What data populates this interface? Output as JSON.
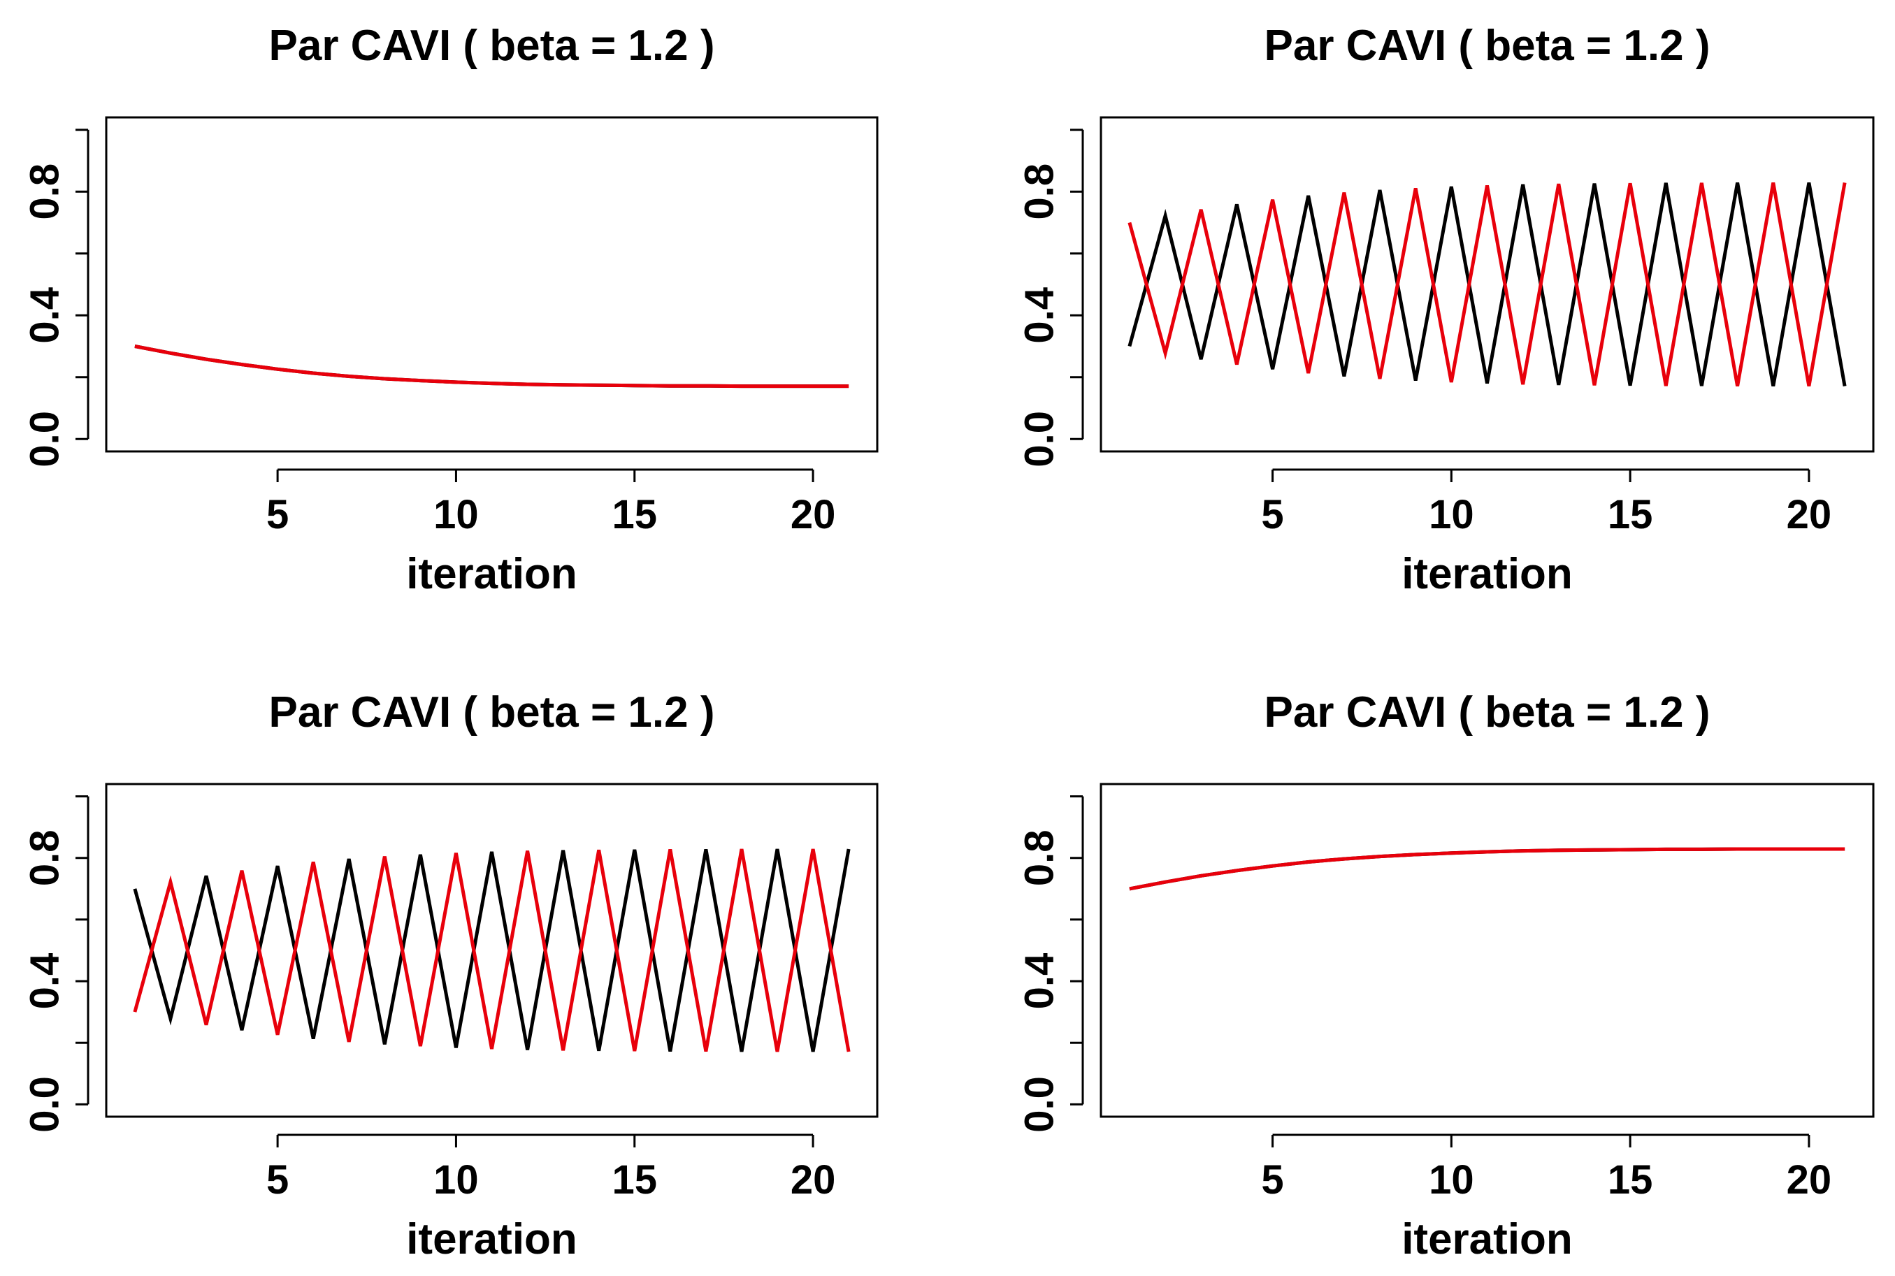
{
  "chart_data": [
    {
      "type": "line",
      "title": "Par CAVI ( beta =  1.2 )",
      "xlabel": "iteration",
      "ylabel": "",
      "xlim": [
        0.2,
        21.8
      ],
      "ylim": [
        -0.04,
        1.04
      ],
      "xticks": [
        5,
        10,
        15,
        20
      ],
      "xtick_labels": [
        "5",
        "10",
        "15",
        "20"
      ],
      "yticks": [
        0.0,
        0.2,
        0.4,
        0.6,
        0.8,
        1.0
      ],
      "ytick_labels": [
        "0.0",
        "",
        "0.4",
        "",
        "0.8",
        ""
      ],
      "x": [
        1,
        2,
        3,
        4,
        5,
        6,
        7,
        8,
        9,
        10,
        11,
        12,
        13,
        14,
        15,
        16,
        17,
        18,
        19,
        20,
        21
      ],
      "series": [
        {
          "name": "series-black",
          "color": "#000000",
          "values": [
            0.3,
            0.278,
            0.258,
            0.241,
            0.226,
            0.213,
            0.203,
            0.195,
            0.189,
            0.184,
            0.18,
            0.177,
            0.175,
            0.174,
            0.173,
            0.172,
            0.172,
            0.171,
            0.171,
            0.171,
            0.171
          ]
        },
        {
          "name": "series-red",
          "color": "#e8000b",
          "values": [
            0.3,
            0.278,
            0.258,
            0.241,
            0.226,
            0.213,
            0.203,
            0.195,
            0.189,
            0.184,
            0.18,
            0.177,
            0.175,
            0.174,
            0.173,
            0.172,
            0.172,
            0.171,
            0.171,
            0.171,
            0.171
          ]
        }
      ]
    },
    {
      "type": "line",
      "title": "Par CAVI ( beta =  1.2 )",
      "xlabel": "iteration",
      "ylabel": "",
      "xlim": [
        0.2,
        21.8
      ],
      "ylim": [
        -0.04,
        1.04
      ],
      "xticks": [
        5,
        10,
        15,
        20
      ],
      "xtick_labels": [
        "5",
        "10",
        "15",
        "20"
      ],
      "yticks": [
        0.0,
        0.2,
        0.4,
        0.6,
        0.8,
        1.0
      ],
      "ytick_labels": [
        "0.0",
        "",
        "0.4",
        "",
        "0.8",
        ""
      ],
      "x": [
        1,
        2,
        3,
        4,
        5,
        6,
        7,
        8,
        9,
        10,
        11,
        12,
        13,
        14,
        15,
        16,
        17,
        18,
        19,
        20,
        21
      ],
      "series": [
        {
          "name": "series-black",
          "color": "#000000",
          "values": [
            0.3,
            0.722,
            0.258,
            0.759,
            0.226,
            0.787,
            0.203,
            0.805,
            0.189,
            0.816,
            0.18,
            0.823,
            0.175,
            0.826,
            0.173,
            0.828,
            0.172,
            0.829,
            0.171,
            0.829,
            0.171
          ]
        },
        {
          "name": "series-red",
          "color": "#e8000b",
          "values": [
            0.7,
            0.278,
            0.742,
            0.241,
            0.774,
            0.213,
            0.797,
            0.195,
            0.811,
            0.184,
            0.82,
            0.177,
            0.825,
            0.174,
            0.827,
            0.172,
            0.828,
            0.171,
            0.829,
            0.171,
            0.829
          ]
        }
      ]
    },
    {
      "type": "line",
      "title": "Par CAVI ( beta =  1.2 )",
      "xlabel": "iteration",
      "ylabel": "",
      "xlim": [
        0.2,
        21.8
      ],
      "ylim": [
        -0.04,
        1.04
      ],
      "xticks": [
        5,
        10,
        15,
        20
      ],
      "xtick_labels": [
        "5",
        "10",
        "15",
        "20"
      ],
      "yticks": [
        0.0,
        0.2,
        0.4,
        0.6,
        0.8,
        1.0
      ],
      "ytick_labels": [
        "0.0",
        "",
        "0.4",
        "",
        "0.8",
        ""
      ],
      "x": [
        1,
        2,
        3,
        4,
        5,
        6,
        7,
        8,
        9,
        10,
        11,
        12,
        13,
        14,
        15,
        16,
        17,
        18,
        19,
        20,
        21
      ],
      "series": [
        {
          "name": "series-black",
          "color": "#000000",
          "values": [
            0.7,
            0.278,
            0.742,
            0.241,
            0.774,
            0.213,
            0.797,
            0.195,
            0.811,
            0.184,
            0.82,
            0.177,
            0.825,
            0.174,
            0.827,
            0.172,
            0.828,
            0.171,
            0.829,
            0.171,
            0.829
          ]
        },
        {
          "name": "series-red",
          "color": "#e8000b",
          "values": [
            0.3,
            0.722,
            0.258,
            0.759,
            0.226,
            0.787,
            0.203,
            0.805,
            0.189,
            0.816,
            0.18,
            0.823,
            0.175,
            0.826,
            0.173,
            0.828,
            0.172,
            0.829,
            0.171,
            0.829,
            0.171
          ]
        }
      ]
    },
    {
      "type": "line",
      "title": "Par CAVI ( beta =  1.2 )",
      "xlabel": "iteration",
      "ylabel": "",
      "xlim": [
        0.2,
        21.8
      ],
      "ylim": [
        -0.04,
        1.04
      ],
      "xticks": [
        5,
        10,
        15,
        20
      ],
      "xtick_labels": [
        "5",
        "10",
        "15",
        "20"
      ],
      "yticks": [
        0.0,
        0.2,
        0.4,
        0.6,
        0.8,
        1.0
      ],
      "ytick_labels": [
        "0.0",
        "",
        "0.4",
        "",
        "0.8",
        ""
      ],
      "x": [
        1,
        2,
        3,
        4,
        5,
        6,
        7,
        8,
        9,
        10,
        11,
        12,
        13,
        14,
        15,
        16,
        17,
        18,
        19,
        20,
        21
      ],
      "series": [
        {
          "name": "series-black",
          "color": "#000000",
          "values": [
            0.7,
            0.722,
            0.742,
            0.759,
            0.774,
            0.787,
            0.797,
            0.805,
            0.811,
            0.816,
            0.82,
            0.823,
            0.825,
            0.826,
            0.827,
            0.828,
            0.828,
            0.829,
            0.829,
            0.829,
            0.829
          ]
        },
        {
          "name": "series-red",
          "color": "#e8000b",
          "values": [
            0.7,
            0.722,
            0.742,
            0.759,
            0.774,
            0.787,
            0.797,
            0.805,
            0.811,
            0.816,
            0.82,
            0.823,
            0.825,
            0.826,
            0.827,
            0.828,
            0.828,
            0.829,
            0.829,
            0.829,
            0.829
          ]
        }
      ]
    }
  ]
}
